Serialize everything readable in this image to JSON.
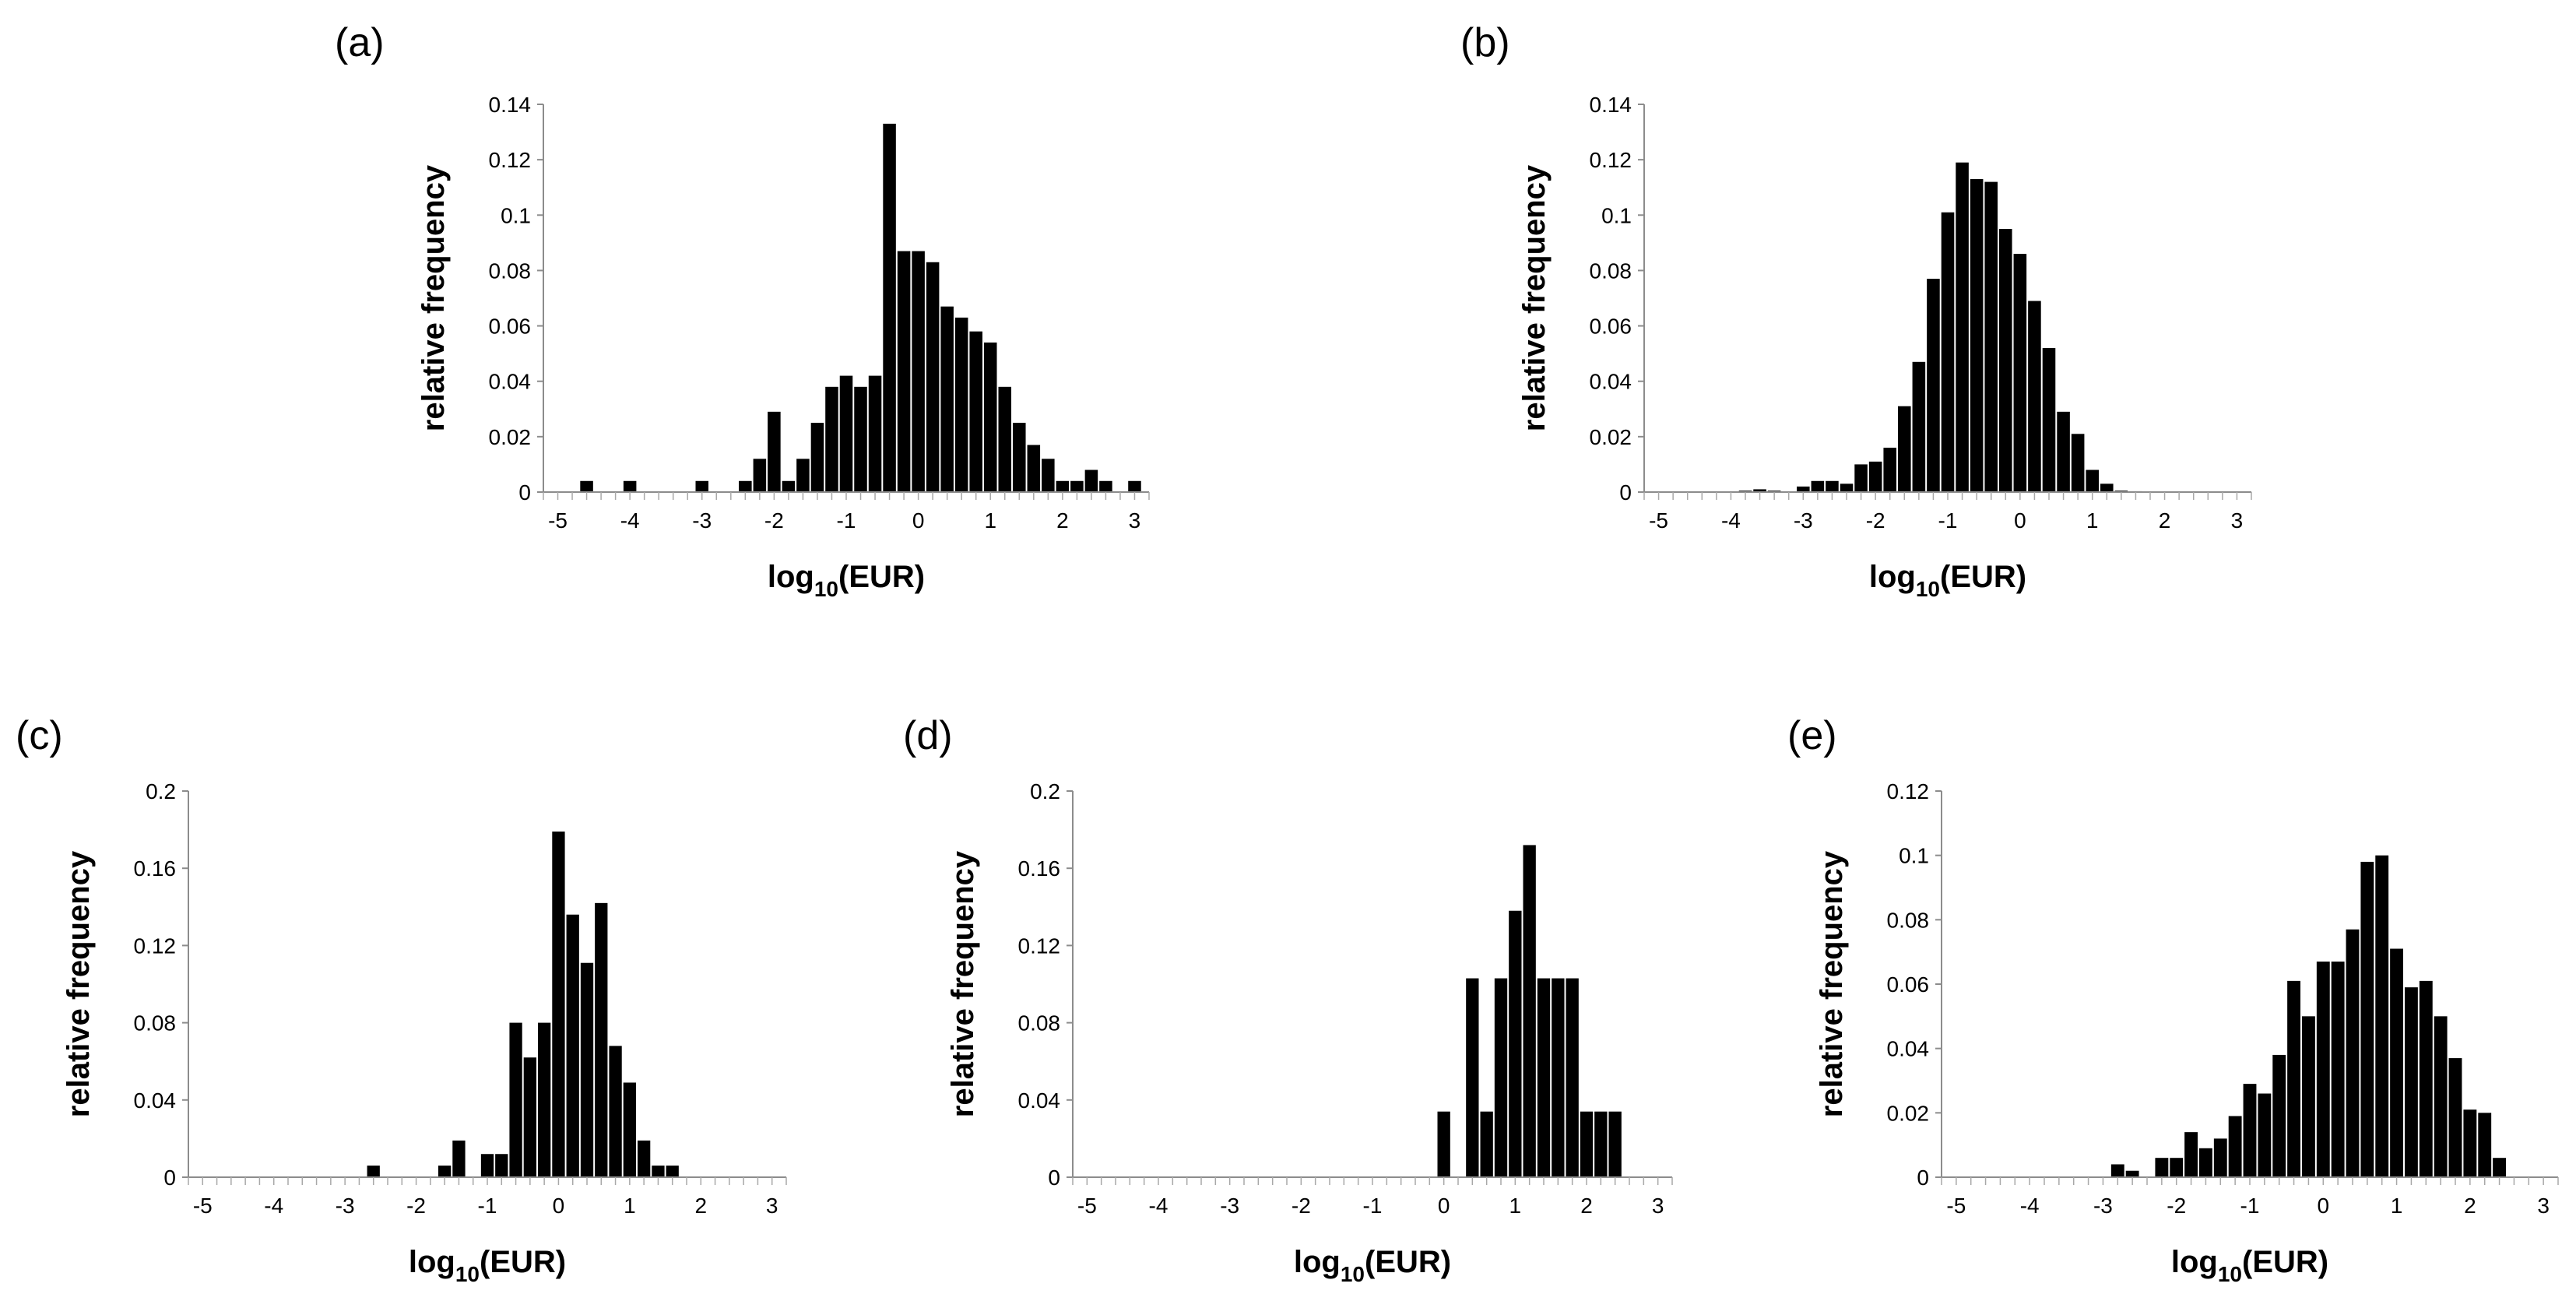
{
  "chart_data": [
    {
      "type": "bar",
      "panel": "(a)",
      "xlabel_main": "log",
      "xlabel_sub": "10",
      "xlabel_tail": "(EUR)",
      "ylabel": "relative frequency",
      "xlim": [
        -5.2,
        3.2
      ],
      "ylim": [
        0,
        0.14
      ],
      "xticks": [
        -5,
        -4,
        -3,
        -2,
        -1,
        0,
        1,
        2,
        3
      ],
      "xtick_labels": [
        "-5",
        "-4",
        "-3",
        "-2",
        "-1",
        "0",
        "1",
        "2",
        "3"
      ],
      "yticks": [
        0,
        0.02,
        0.04,
        0.06,
        0.08,
        0.1,
        0.12,
        0.14
      ],
      "ytick_labels": [
        "0",
        "0.02",
        "0.04",
        "0.06",
        "0.08",
        "0.1",
        "0.12",
        "0.14"
      ],
      "bin_width": 0.2,
      "x": [
        -4.6,
        -4.0,
        -3.0,
        -2.4,
        -2.2,
        -2.0,
        -1.8,
        -1.6,
        -1.4,
        -1.2,
        -1.0,
        -0.8,
        -0.6,
        -0.4,
        -0.2,
        0.0,
        0.2,
        0.4,
        0.6,
        0.8,
        1.0,
        1.2,
        1.4,
        1.6,
        1.8,
        2.0,
        2.2,
        2.4,
        2.6,
        3.0
      ],
      "values": [
        0.004,
        0.004,
        0.004,
        0.004,
        0.012,
        0.029,
        0.004,
        0.012,
        0.025,
        0.038,
        0.042,
        0.038,
        0.042,
        0.133,
        0.087,
        0.087,
        0.083,
        0.067,
        0.063,
        0.058,
        0.054,
        0.038,
        0.025,
        0.017,
        0.012,
        0.004,
        0.004,
        0.008,
        0.004,
        0.004
      ]
    },
    {
      "type": "bar",
      "panel": "(b)",
      "xlabel_main": "log",
      "xlabel_sub": "10",
      "xlabel_tail": "(EUR)",
      "ylabel": "relative frequency",
      "xlim": [
        -5.2,
        3.2
      ],
      "ylim": [
        0,
        0.14
      ],
      "xticks": [
        -5,
        -4,
        -3,
        -2,
        -1,
        0,
        1,
        2,
        3
      ],
      "xtick_labels": [
        "-5",
        "-4",
        "-3",
        "-2",
        "-1",
        "0",
        "1",
        "2",
        "3"
      ],
      "yticks": [
        0,
        0.02,
        0.04,
        0.06,
        0.08,
        0.1,
        0.12,
        0.14
      ],
      "ytick_labels": [
        "0",
        "0.02",
        "0.04",
        "0.06",
        "0.08",
        "0.1",
        "0.12",
        "0.14"
      ],
      "bin_width": 0.2,
      "x": [
        -3.8,
        -3.6,
        -3.4,
        -3.0,
        -2.8,
        -2.6,
        -2.4,
        -2.2,
        -2.0,
        -1.8,
        -1.6,
        -1.4,
        -1.2,
        -1.0,
        -0.8,
        -0.6,
        -0.4,
        -0.2,
        0.0,
        0.2,
        0.4,
        0.6,
        0.8,
        1.0,
        1.2,
        1.4,
        1.6
      ],
      "values": [
        0.0005,
        0.001,
        0.0005,
        0.002,
        0.004,
        0.004,
        0.003,
        0.01,
        0.011,
        0.016,
        0.031,
        0.047,
        0.077,
        0.101,
        0.119,
        0.113,
        0.112,
        0.095,
        0.086,
        0.069,
        0.052,
        0.029,
        0.021,
        0.008,
        0.003,
        0.0005,
        0.0003
      ]
    },
    {
      "type": "bar",
      "panel": "(c)",
      "xlabel_main": "log",
      "xlabel_sub": "10",
      "xlabel_tail": "(EUR)",
      "ylabel": "relative frequency",
      "xlim": [
        -5.2,
        3.2
      ],
      "ylim": [
        0,
        0.2
      ],
      "xticks": [
        -5,
        -4,
        -3,
        -2,
        -1,
        0,
        1,
        2,
        3
      ],
      "xtick_labels": [
        "-5",
        "-4",
        "-3",
        "-2",
        "-1",
        "0",
        "1",
        "2",
        "3"
      ],
      "yticks": [
        0,
        0.04,
        0.08,
        0.12,
        0.16,
        0.2
      ],
      "ytick_labels": [
        "0",
        "0.04",
        "0.08",
        "0.12",
        "0.16",
        "0.2"
      ],
      "bin_width": 0.2,
      "x": [
        -2.6,
        -1.6,
        -1.4,
        -1.0,
        -0.8,
        -0.6,
        -0.4,
        -0.2,
        0.0,
        0.2,
        0.4,
        0.6,
        0.8,
        1.0,
        1.2,
        1.4,
        1.6
      ],
      "values": [
        0.006,
        0.006,
        0.019,
        0.012,
        0.012,
        0.08,
        0.062,
        0.08,
        0.179,
        0.136,
        0.111,
        0.142,
        0.068,
        0.049,
        0.019,
        0.006,
        0.006
      ]
    },
    {
      "type": "bar",
      "panel": "(d)",
      "xlabel_main": "log",
      "xlabel_sub": "10",
      "xlabel_tail": "(EUR)",
      "ylabel": "relative frequency",
      "xlim": [
        -5.2,
        3.2
      ],
      "ylim": [
        0,
        0.2
      ],
      "xticks": [
        -5,
        -4,
        -3,
        -2,
        -1,
        0,
        1,
        2,
        3
      ],
      "xtick_labels": [
        "-5",
        "-4",
        "-3",
        "-2",
        "-1",
        "0",
        "1",
        "2",
        "3"
      ],
      "yticks": [
        0,
        0.04,
        0.08,
        0.12,
        0.16,
        0.2
      ],
      "ytick_labels": [
        "0",
        "0.04",
        "0.08",
        "0.12",
        "0.16",
        "0.2"
      ],
      "bin_width": 0.2,
      "x": [
        0.0,
        0.4,
        0.6,
        0.8,
        1.0,
        1.2,
        1.4,
        1.6,
        1.8,
        2.0,
        2.2,
        2.4
      ],
      "values": [
        0.034,
        0.103,
        0.034,
        0.103,
        0.138,
        0.172,
        0.103,
        0.103,
        0.103,
        0.034,
        0.034,
        0.034
      ]
    },
    {
      "type": "bar",
      "panel": "(e)",
      "xlabel_main": "log",
      "xlabel_sub": "10",
      "xlabel_tail": "(EUR)",
      "ylabel": "relative frequency",
      "xlim": [
        -5.2,
        3.2
      ],
      "ylim": [
        0,
        0.12
      ],
      "xticks": [
        -5,
        -4,
        -3,
        -2,
        -1,
        0,
        1,
        2,
        3
      ],
      "xtick_labels": [
        "-5",
        "-4",
        "-3",
        "-2",
        "-1",
        "0",
        "1",
        "2",
        "3"
      ],
      "yticks": [
        0,
        0.02,
        0.04,
        0.06,
        0.08,
        0.1,
        0.12
      ],
      "ytick_labels": [
        "0",
        "0.02",
        "0.04",
        "0.06",
        "0.08",
        "0.1",
        "0.12"
      ],
      "bin_width": 0.2,
      "x": [
        -2.8,
        -2.6,
        -2.2,
        -2.0,
        -1.8,
        -1.6,
        -1.4,
        -1.2,
        -1.0,
        -0.8,
        -0.6,
        -0.4,
        -0.2,
        0.0,
        0.2,
        0.4,
        0.6,
        0.8,
        1.0,
        1.2,
        1.4,
        1.6,
        1.8,
        2.0,
        2.2,
        2.4
      ],
      "values": [
        0.004,
        0.002,
        0.006,
        0.006,
        0.014,
        0.009,
        0.012,
        0.019,
        0.029,
        0.026,
        0.038,
        0.061,
        0.05,
        0.067,
        0.067,
        0.077,
        0.098,
        0.1,
        0.071,
        0.059,
        0.061,
        0.05,
        0.037,
        0.021,
        0.02,
        0.006
      ]
    }
  ]
}
